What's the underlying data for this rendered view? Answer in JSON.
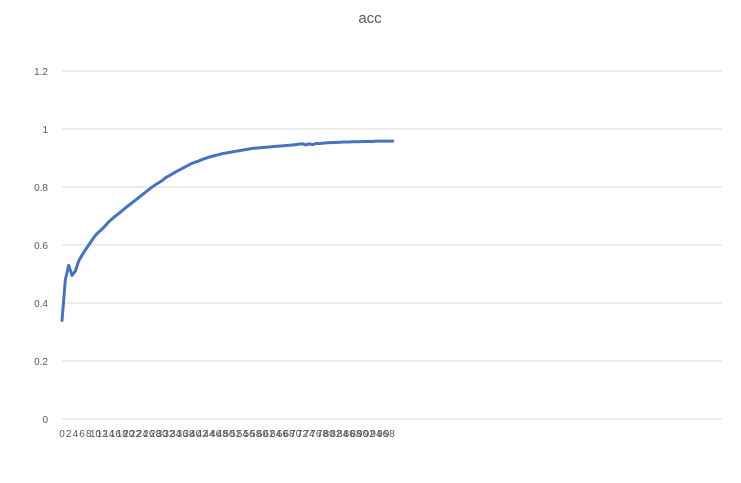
{
  "chart_data": {
    "type": "line",
    "title": "acc",
    "xlabel": "",
    "ylabel": "",
    "xlim": [
      0,
      99
    ],
    "ylim": [
      0,
      1.2
    ],
    "y_ticks": [
      0,
      0.2,
      0.4,
      0.6,
      0.8,
      1,
      1.2
    ],
    "y_tick_labels": [
      "0",
      "0.2",
      "0.4",
      "0.6",
      "0.8",
      "1",
      "1.2"
    ],
    "x_ticks": [
      0,
      2,
      4,
      6,
      8,
      10,
      12,
      14,
      16,
      18,
      20,
      22,
      24,
      26,
      28,
      30,
      32,
      34,
      36,
      38,
      40,
      42,
      44,
      46,
      48,
      50,
      52,
      54,
      56,
      58,
      60,
      62,
      64,
      66,
      68,
      70,
      72,
      74,
      76,
      78,
      80,
      82,
      84,
      86,
      88,
      90,
      92,
      94,
      96,
      98
    ],
    "x_tick_labels": [
      "0",
      "2",
      "4",
      "6",
      "8",
      "10",
      "12",
      "14",
      "16",
      "18",
      "20",
      "22",
      "24",
      "26",
      "28",
      "30",
      "32",
      "34",
      "36",
      "38",
      "40",
      "42",
      "44",
      "46",
      "48",
      "50",
      "52",
      "54",
      "56",
      "58",
      "60",
      "62",
      "64",
      "66",
      "68",
      "70",
      "72",
      "74",
      "76",
      "78",
      "80",
      "82",
      "84",
      "86",
      "88",
      "90",
      "92",
      "94",
      "96",
      "98"
    ],
    "grid": "horizontal",
    "legend": "none",
    "series": [
      {
        "color": "#4472C4",
        "x": [
          0,
          1,
          2,
          3,
          4,
          5,
          6,
          7,
          8,
          9,
          10,
          11,
          12,
          13,
          14,
          15,
          16,
          17,
          18,
          19,
          20,
          21,
          22,
          23,
          24,
          25,
          26,
          27,
          28,
          29,
          30,
          31,
          32,
          33,
          34,
          35,
          36,
          37,
          38,
          39,
          40,
          41,
          42,
          43,
          44,
          45,
          46,
          47,
          48,
          49,
          50,
          51,
          52,
          53,
          54,
          55,
          56,
          57,
          58,
          59,
          60,
          61,
          62,
          63,
          64,
          65,
          66,
          67,
          68,
          69,
          70,
          71,
          72,
          73,
          74,
          75,
          76,
          77,
          78,
          79,
          80,
          81,
          82,
          83,
          84,
          85,
          86,
          87,
          88,
          89,
          90,
          91,
          92,
          93,
          94,
          95,
          96,
          97,
          98,
          99
        ],
        "values": [
          0.34,
          0.48,
          0.53,
          0.495,
          0.51,
          0.545,
          0.565,
          0.583,
          0.6,
          0.617,
          0.633,
          0.645,
          0.655,
          0.667,
          0.68,
          0.69,
          0.7,
          0.709,
          0.718,
          0.728,
          0.737,
          0.746,
          0.755,
          0.764,
          0.773,
          0.782,
          0.791,
          0.8,
          0.808,
          0.815,
          0.822,
          0.832,
          0.838,
          0.845,
          0.852,
          0.858,
          0.864,
          0.87,
          0.876,
          0.882,
          0.886,
          0.89,
          0.895,
          0.899,
          0.903,
          0.906,
          0.909,
          0.912,
          0.915,
          0.917,
          0.919,
          0.921,
          0.923,
          0.925,
          0.927,
          0.929,
          0.931,
          0.933,
          0.934,
          0.935,
          0.936,
          0.937,
          0.938,
          0.939,
          0.94,
          0.941,
          0.942,
          0.943,
          0.944,
          0.945,
          0.946,
          0.948,
          0.949,
          0.945,
          0.949,
          0.946,
          0.95,
          0.95,
          0.951,
          0.952,
          0.953,
          0.953,
          0.954,
          0.954,
          0.955,
          0.955,
          0.955,
          0.956,
          0.956,
          0.956,
          0.957,
          0.957,
          0.957,
          0.957,
          0.958,
          0.958,
          0.958,
          0.958,
          0.958,
          0.958
        ]
      }
    ]
  }
}
